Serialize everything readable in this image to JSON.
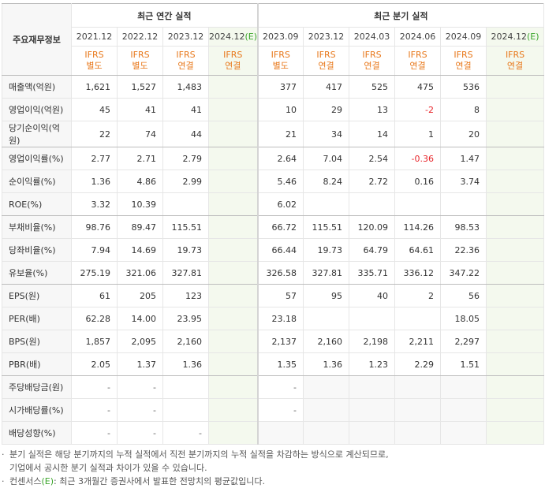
{
  "table": {
    "corner": "주요재무정보",
    "groups": [
      {
        "title": "최근 연간 실적",
        "columns": [
          {
            "period": "2021.12",
            "standard": "IFRS",
            "scope": "별도"
          },
          {
            "period": "2022.12",
            "standard": "IFRS",
            "scope": "별도"
          },
          {
            "period": "2023.12",
            "standard": "IFRS",
            "scope": "연결"
          },
          {
            "period": "2024.12",
            "estimate": "(E)",
            "standard": "IFRS",
            "scope": "연결"
          }
        ]
      },
      {
        "title": "최근 분기 실적",
        "columns": [
          {
            "period": "2023.09",
            "standard": "IFRS",
            "scope": "별도"
          },
          {
            "period": "2023.12",
            "standard": "IFRS",
            "scope": "연결"
          },
          {
            "period": "2024.03",
            "standard": "IFRS",
            "scope": "연결"
          },
          {
            "period": "2024.06",
            "standard": "IFRS",
            "scope": "연결"
          },
          {
            "period": "2024.09",
            "standard": "IFRS",
            "scope": "연결"
          },
          {
            "period": "2024.12",
            "estimate": "(E)",
            "standard": "IFRS",
            "scope": "연결"
          }
        ]
      }
    ],
    "sections": [
      {
        "rows": [
          {
            "label": "매출액(억원)",
            "values": [
              "1,621",
              "1,527",
              "1,483",
              null,
              "377",
              "417",
              "525",
              "475",
              "536",
              null
            ]
          },
          {
            "label": "영업이익(억원)",
            "values": [
              "45",
              "41",
              "41",
              null,
              "10",
              "29",
              "13",
              "-2",
              "8",
              null
            ]
          },
          {
            "label": "당기순이익(억원)",
            "values": [
              "22",
              "74",
              "44",
              null,
              "21",
              "34",
              "14",
              "1",
              "20",
              null
            ]
          }
        ]
      },
      {
        "rows": [
          {
            "label": "영업이익률(%)",
            "values": [
              "2.77",
              "2.71",
              "2.79",
              null,
              "2.64",
              "7.04",
              "2.54",
              "-0.36",
              "1.47",
              null
            ]
          },
          {
            "label": "순이익률(%)",
            "values": [
              "1.36",
              "4.86",
              "2.99",
              null,
              "5.46",
              "8.24",
              "2.72",
              "0.16",
              "3.74",
              null
            ]
          },
          {
            "label": "ROE(%)",
            "values": [
              "3.32",
              "10.39",
              null,
              null,
              "6.02",
              null,
              null,
              null,
              null,
              null
            ]
          }
        ]
      },
      {
        "rows": [
          {
            "label": "부채비율(%)",
            "values": [
              "98.76",
              "89.47",
              "115.51",
              null,
              "66.72",
              "115.51",
              "120.09",
              "114.26",
              "98.53",
              null
            ]
          },
          {
            "label": "당좌비율(%)",
            "values": [
              "7.94",
              "14.69",
              "19.73",
              null,
              "66.44",
              "19.73",
              "64.79",
              "64.61",
              "22.36",
              null
            ]
          },
          {
            "label": "유보율(%)",
            "values": [
              "275.19",
              "321.06",
              "327.81",
              null,
              "326.58",
              "327.81",
              "335.71",
              "336.12",
              "347.22",
              null
            ]
          }
        ]
      },
      {
        "rows": [
          {
            "label": "EPS(원)",
            "values": [
              "61",
              "205",
              "123",
              null,
              "57",
              "95",
              "40",
              "2",
              "56",
              null
            ]
          },
          {
            "label": "PER(배)",
            "values": [
              "62.28",
              "14.00",
              "23.95",
              null,
              "23.18",
              null,
              null,
              null,
              "18.05",
              null
            ]
          },
          {
            "label": "BPS(원)",
            "values": [
              "1,857",
              "2,095",
              "2,160",
              null,
              "2,137",
              "2,160",
              "2,198",
              "2,211",
              "2,297",
              null
            ]
          },
          {
            "label": "PBR(배)",
            "values": [
              "2.05",
              "1.37",
              "1.36",
              null,
              "1.35",
              "1.36",
              "1.23",
              "2.29",
              "1.51",
              null
            ]
          }
        ]
      },
      {
        "rows": [
          {
            "label": "주당배당금(원)",
            "values": [
              "-",
              "-",
              null,
              null,
              "-",
              null,
              null,
              null,
              null,
              null
            ]
          },
          {
            "label": "시가배당률(%)",
            "values": [
              "-",
              "-",
              null,
              null,
              "-",
              null,
              null,
              null,
              null,
              null
            ]
          },
          {
            "label": "배당성향(%)",
            "values": [
              "-",
              "-",
              "-",
              null,
              null,
              null,
              null,
              null,
              null,
              null
            ]
          }
        ]
      }
    ]
  },
  "notes": [
    {
      "parts": [
        "분기 실적은 해당 분기까지의 누적 실적에서 직전 분기까지의 누적 실적을 차감하는 방식으로 계산되므로,",
        "기업에서 공시한 분기 실적과 차이가 있을 수 있습니다."
      ]
    },
    {
      "parts": [
        "컨센서스",
        "(E)",
        ": 최근 3개월간 증권사에서 발표한 전망치의 평균값입니다."
      ]
    }
  ]
}
